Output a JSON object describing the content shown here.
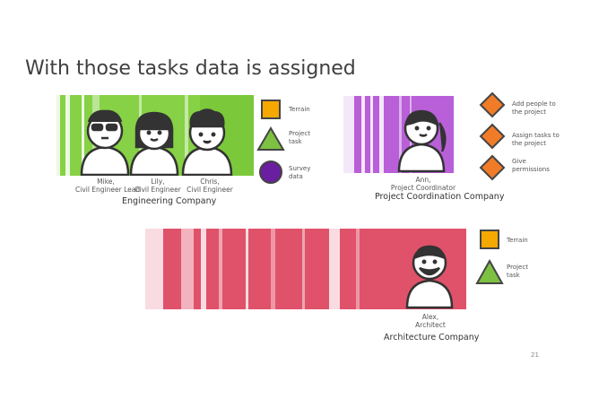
{
  "title": "With those tasks data is assigned",
  "page_number": "21",
  "engineering": {
    "company": "Engineering Company",
    "band_color": "#7fcf3a",
    "people": [
      {
        "name": "Mike,",
        "role": "Civil Engineer Lead"
      },
      {
        "name": "Lily,",
        "role": "Civil Engineer"
      },
      {
        "name": "Chris,",
        "role": "Civil Engineer"
      }
    ],
    "legend": [
      {
        "icon": "square",
        "color": "#f5a800",
        "label": "Terrain"
      },
      {
        "icon": "triangle",
        "color": "#7dc142",
        "label": "Project task"
      },
      {
        "icon": "circle",
        "color": "#6a1fa0",
        "label": "Survey data"
      }
    ]
  },
  "coordination": {
    "company": "Project Coordination Company",
    "band_color": "#b65ad6",
    "people": [
      {
        "name": "Ann,",
        "role": "Project Coordinator"
      }
    ],
    "legend": [
      {
        "icon": "diamond",
        "color": "#f07c28",
        "label": "Add people to the project"
      },
      {
        "icon": "diamond",
        "color": "#f07c28",
        "label": "Assign tasks to the project"
      },
      {
        "icon": "diamond",
        "color": "#f07c28",
        "label": "Give permissions"
      }
    ]
  },
  "architecture": {
    "company": "Architecture Company",
    "band_color": "#e04a63",
    "people": [
      {
        "name": "Alex,",
        "role": "Architect"
      }
    ],
    "legend": [
      {
        "icon": "square",
        "color": "#f5a800",
        "label": "Terrain"
      },
      {
        "icon": "triangle",
        "color": "#7dc142",
        "label": "Project task"
      }
    ]
  }
}
